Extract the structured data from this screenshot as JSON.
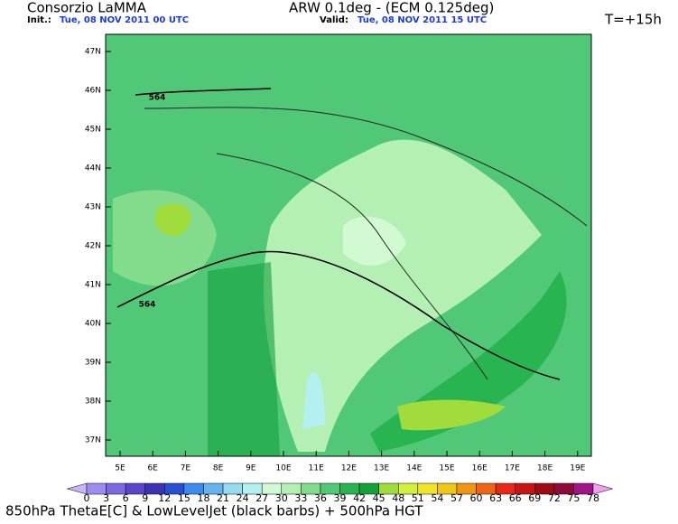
{
  "header": {
    "source": "Consorzio LaMMA",
    "init_label": "Init.:",
    "init_value": "Tue, 08 NOV 2011  00 UTC",
    "model": "ARW 0.1deg - (ECM 0.125deg)",
    "valid_label": "Valid:",
    "valid_value": "Tue, 08 NOV 2011  15 UTC",
    "lead_time": "T=+15h"
  },
  "map": {
    "lat_labels": [
      "47N",
      "46N",
      "45N",
      "44N",
      "43N",
      "42N",
      "41N",
      "40N",
      "39N",
      "38N",
      "37N"
    ],
    "lon_labels": [
      "5E",
      "6E",
      "7E",
      "8E",
      "9E",
      "10E",
      "11E",
      "12E",
      "13E",
      "14E",
      "15E",
      "16E",
      "17E",
      "18E",
      "19E"
    ],
    "contour_labels": [
      "564",
      "564"
    ]
  },
  "colorbar": {
    "labels": [
      0,
      3,
      6,
      9,
      12,
      15,
      18,
      21,
      24,
      27,
      30,
      33,
      36,
      39,
      42,
      45,
      48,
      51,
      54,
      57,
      60,
      63,
      66,
      69,
      72,
      75,
      78
    ],
    "colors": [
      "#c8b4f8",
      "#a08cf0",
      "#7c68e0",
      "#5a46cc",
      "#3c32b4",
      "#2850d2",
      "#3c8cf0",
      "#64b4f0",
      "#96dcf0",
      "#b4f0f0",
      "#d2fad2",
      "#b4f0b4",
      "#82dc8c",
      "#50c878",
      "#28b450",
      "#14a03c",
      "#a0dc3c",
      "#d2f03c",
      "#f0e628",
      "#f0c814",
      "#f09614",
      "#f06414",
      "#e62814",
      "#c81414",
      "#a00a14",
      "#8c0a3c",
      "#a0148c",
      "#dc28dc",
      "#f0a0f0"
    ]
  },
  "footer": "850hPa ThetaE[C] & LowLevelJet (black barbs) + 500hPa HGT"
}
